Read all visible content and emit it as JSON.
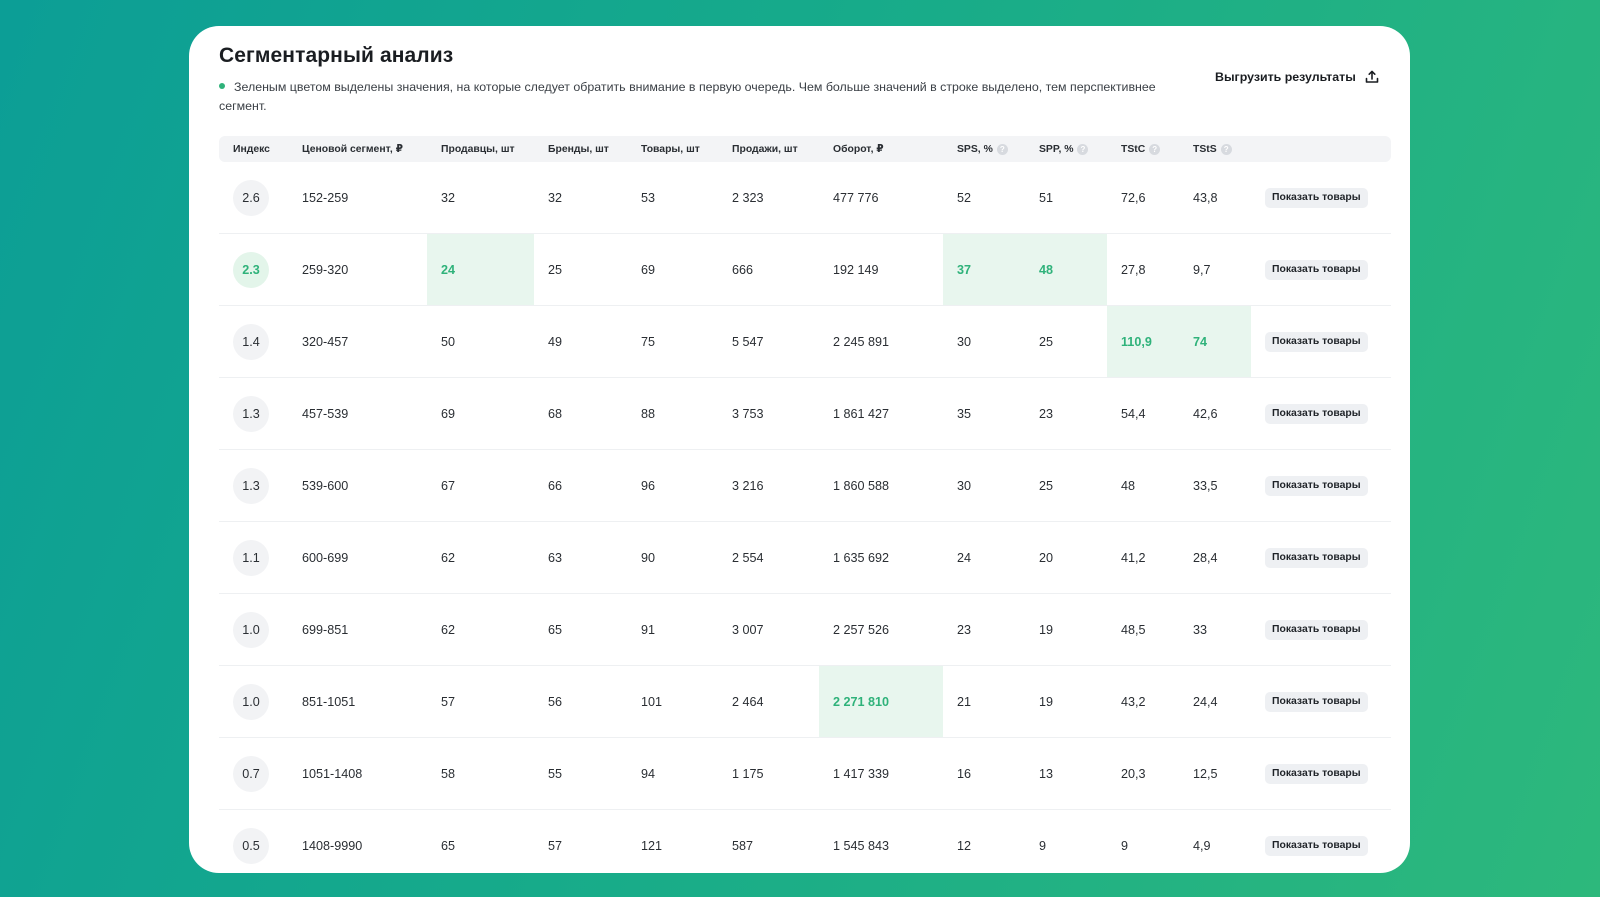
{
  "title": "Сегментарный анализ",
  "note": "Зеленым цветом выделены значения, на которые следует обратить внимание в первую очередь. Чем больше значений в строке выделено, тем перспективнее сегмент.",
  "export_label": "Выгрузить результаты",
  "colors": {
    "highlight_text": "#2fb27a",
    "highlight_bg": "#e8f6ee",
    "accent_dot": "#2fb27a"
  },
  "columns": [
    {
      "label": "Индекс",
      "help": false
    },
    {
      "label": "Ценовой сегмент, ₽",
      "help": false
    },
    {
      "label": "Продавцы, шт",
      "help": false
    },
    {
      "label": "Бренды, шт",
      "help": false
    },
    {
      "label": "Товары, шт",
      "help": false
    },
    {
      "label": "Продажи, шт",
      "help": false
    },
    {
      "label": "Оборот, ₽",
      "help": false
    },
    {
      "label": "SPS, %",
      "help": true
    },
    {
      "label": "SPP, %",
      "help": true
    },
    {
      "label": "TStC",
      "help": true
    },
    {
      "label": "TStS",
      "help": true
    },
    {
      "label": "",
      "help": false
    }
  ],
  "help_glyph": "?",
  "row_button_label": "Показать товары",
  "rows": [
    {
      "index": "2.6",
      "segment": "152-259",
      "sellers": "32",
      "brands": "32",
      "products": "53",
      "sales": "2 323",
      "turnover": "477 776",
      "sps": "52",
      "spp": "51",
      "tstc": "72,6",
      "tsts": "43,8",
      "highlight": []
    },
    {
      "index": "2.3",
      "segment": "259-320",
      "sellers": "24",
      "brands": "25",
      "products": "69",
      "sales": "666",
      "turnover": "192 149",
      "sps": "37",
      "spp": "48",
      "tstc": "27,8",
      "tsts": "9,7",
      "highlight": [
        "index",
        "sellers",
        "sps",
        "spp"
      ]
    },
    {
      "index": "1.4",
      "segment": "320-457",
      "sellers": "50",
      "brands": "49",
      "products": "75",
      "sales": "5 547",
      "turnover": "2 245 891",
      "sps": "30",
      "spp": "25",
      "tstc": "110,9",
      "tsts": "74",
      "highlight": [
        "tstc",
        "tsts"
      ]
    },
    {
      "index": "1.3",
      "segment": "457-539",
      "sellers": "69",
      "brands": "68",
      "products": "88",
      "sales": "3 753",
      "turnover": "1 861 427",
      "sps": "35",
      "spp": "23",
      "tstc": "54,4",
      "tsts": "42,6",
      "highlight": []
    },
    {
      "index": "1.3",
      "segment": "539-600",
      "sellers": "67",
      "brands": "66",
      "products": "96",
      "sales": "3 216",
      "turnover": "1 860 588",
      "sps": "30",
      "spp": "25",
      "tstc": "48",
      "tsts": "33,5",
      "highlight": []
    },
    {
      "index": "1.1",
      "segment": "600-699",
      "sellers": "62",
      "brands": "63",
      "products": "90",
      "sales": "2 554",
      "turnover": "1 635 692",
      "sps": "24",
      "spp": "20",
      "tstc": "41,2",
      "tsts": "28,4",
      "highlight": []
    },
    {
      "index": "1.0",
      "segment": "699-851",
      "sellers": "62",
      "brands": "65",
      "products": "91",
      "sales": "3 007",
      "turnover": "2 257 526",
      "sps": "23",
      "spp": "19",
      "tstc": "48,5",
      "tsts": "33",
      "highlight": []
    },
    {
      "index": "1.0",
      "segment": "851-1051",
      "sellers": "57",
      "brands": "56",
      "products": "101",
      "sales": "2 464",
      "turnover": "2 271 810",
      "sps": "21",
      "spp": "19",
      "tstc": "43,2",
      "tsts": "24,4",
      "highlight": [
        "turnover"
      ]
    },
    {
      "index": "0.7",
      "segment": "1051-1408",
      "sellers": "58",
      "brands": "55",
      "products": "94",
      "sales": "1 175",
      "turnover": "1 417 339",
      "sps": "16",
      "spp": "13",
      "tstc": "20,3",
      "tsts": "12,5",
      "highlight": []
    },
    {
      "index": "0.5",
      "segment": "1408-9990",
      "sellers": "65",
      "brands": "57",
      "products": "121",
      "sales": "587",
      "turnover": "1 545 843",
      "sps": "12",
      "spp": "9",
      "tstc": "9",
      "tsts": "4,9",
      "highlight": []
    }
  ]
}
